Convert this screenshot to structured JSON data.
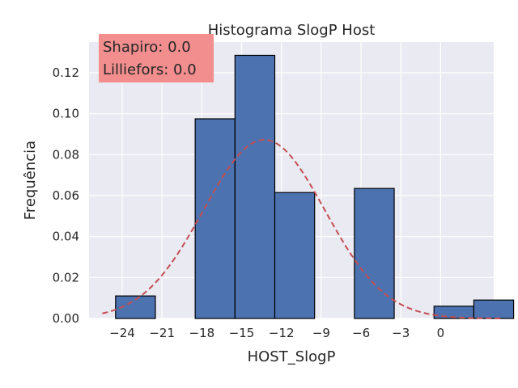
{
  "chart_data": {
    "type": "bar",
    "title": "Histograma SlogP Host",
    "xlabel": "HOST_SlogP",
    "ylabel": "Frequência",
    "xlim": [
      -26.5,
      4.0
    ],
    "ylim": [
      0,
      0.135
    ],
    "x_ticks": [
      -24,
      -21,
      -18,
      -15,
      -12,
      -9,
      -6,
      -3,
      0
    ],
    "x_tick_labels": [
      "−24",
      "−21",
      "−18",
      "−15",
      "−12",
      "−9",
      "−6",
      "−3",
      "0"
    ],
    "y_ticks": [
      0.0,
      0.02,
      0.04,
      0.06,
      0.08,
      0.1,
      0.12
    ],
    "y_tick_labels": [
      "0.00",
      "0.02",
      "0.04",
      "0.06",
      "0.08",
      "0.10",
      "0.12"
    ],
    "grid": true,
    "bins": [
      {
        "x0": -24.5,
        "x1": -21.5,
        "value": 0.011
      },
      {
        "x0": -21.5,
        "x1": -18.5,
        "value": 0.0
      },
      {
        "x0": -18.5,
        "x1": -15.5,
        "value": 0.0975
      },
      {
        "x0": -15.5,
        "x1": -12.5,
        "value": 0.1285
      },
      {
        "x0": -12.5,
        "x1": -9.5,
        "value": 0.0615
      },
      {
        "x0": -9.5,
        "x1": -6.5,
        "value": 0.0
      },
      {
        "x0": -6.5,
        "x1": -3.5,
        "value": 0.0635
      },
      {
        "x0": -3.5,
        "x1": -0.5,
        "value": 0.0
      },
      {
        "x0": -0.5,
        "x1": 2.5,
        "value": 0.006
      },
      {
        "x0": 2.5,
        "x1": 5.5,
        "value": 0.009
      }
    ],
    "normal_fit": {
      "mean": -13.3,
      "std": 4.57,
      "x_range": [
        -25.5,
        4.5
      ]
    },
    "annotation": {
      "lines": [
        "Shapiro: 0.0",
        "Lilliefors: 0.0"
      ],
      "placement": "top-left"
    },
    "colors": {
      "bar": "#4c72b0",
      "bar_edge": "#000000",
      "curve": "#c44e52",
      "plot_bg": "#eaeaf2",
      "grid": "#ffffff",
      "annotation_bg": "#f28e8e"
    }
  }
}
